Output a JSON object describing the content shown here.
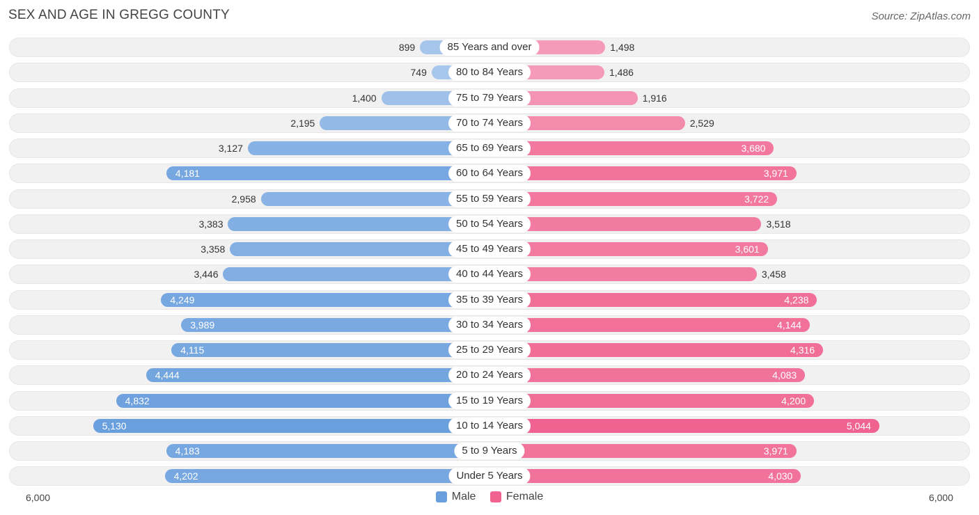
{
  "header": {
    "title": "SEX AND AGE IN GREGG COUNTY",
    "source": "Source: ZipAtlas.com"
  },
  "axis": {
    "left_label": "6,000",
    "right_label": "6,000"
  },
  "legend": {
    "male_label": "Male",
    "female_label": "Female"
  },
  "colors": {
    "male_dark": "#6a9fdd",
    "male_light": "#aac8ec",
    "female_dark": "#f0628f",
    "female_light": "#f6a9c3",
    "row_bg": "#f1f1f1"
  },
  "chart_data": {
    "type": "bar",
    "orientation": "horizontal-butterfly",
    "title": "SEX AND AGE IN GREGG COUNTY",
    "xlim": [
      -6000,
      6000
    ],
    "categories": [
      "85 Years and over",
      "80 to 84 Years",
      "75 to 79 Years",
      "70 to 74 Years",
      "65 to 69 Years",
      "60 to 64 Years",
      "55 to 59 Years",
      "50 to 54 Years",
      "45 to 49 Years",
      "40 to 44 Years",
      "35 to 39 Years",
      "30 to 34 Years",
      "25 to 29 Years",
      "20 to 24 Years",
      "15 to 19 Years",
      "10 to 14 Years",
      "5 to 9 Years",
      "Under 5 Years"
    ],
    "series": [
      {
        "name": "Male",
        "values": [
          899,
          749,
          1400,
          2195,
          3127,
          4181,
          2958,
          3383,
          3358,
          3446,
          4249,
          3989,
          4115,
          4444,
          4832,
          5130,
          4183,
          4202
        ],
        "labels": [
          "899",
          "749",
          "1,400",
          "2,195",
          "3,127",
          "4,181",
          "2,958",
          "3,383",
          "3,358",
          "3,446",
          "4,249",
          "3,989",
          "4,115",
          "4,444",
          "4,832",
          "5,130",
          "4,183",
          "4,202"
        ]
      },
      {
        "name": "Female",
        "values": [
          1498,
          1486,
          1916,
          2529,
          3680,
          3971,
          3722,
          3518,
          3601,
          3458,
          4238,
          4144,
          4316,
          4083,
          4200,
          5044,
          3971,
          4030
        ],
        "labels": [
          "1,498",
          "1,486",
          "1,916",
          "2,529",
          "3,680",
          "3,971",
          "3,722",
          "3,518",
          "3,601",
          "3,458",
          "4,238",
          "4,144",
          "4,316",
          "4,083",
          "4,200",
          "5,044",
          "3,971",
          "4,030"
        ]
      }
    ],
    "legend_position": "bottom-center"
  }
}
